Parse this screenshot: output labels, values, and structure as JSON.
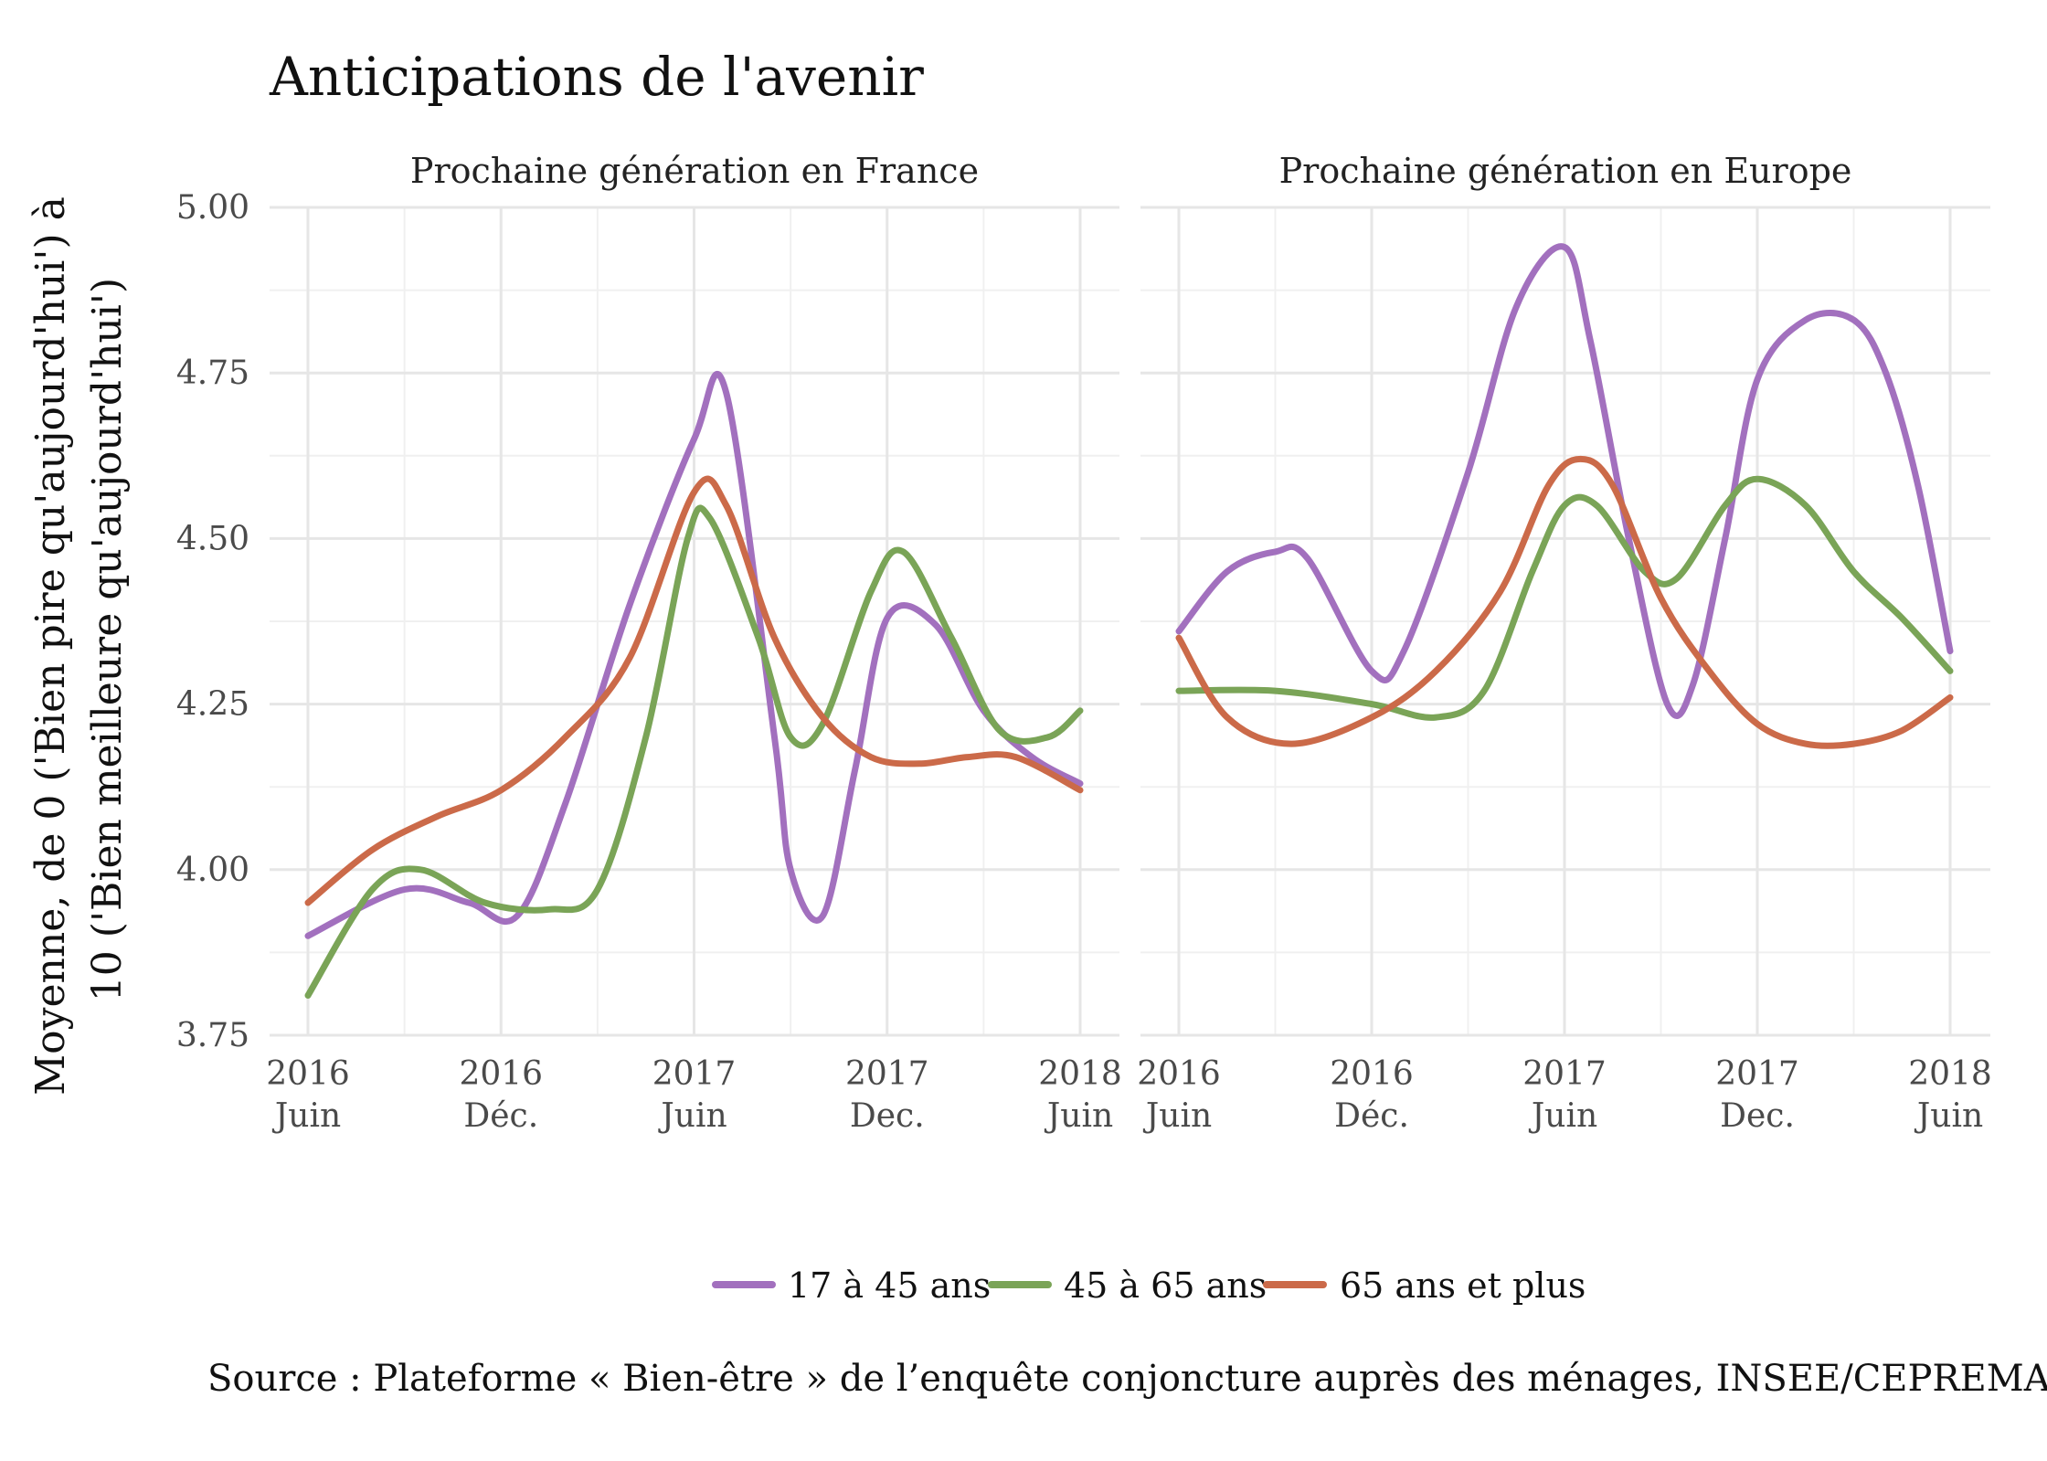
{
  "chart_data": {
    "type": "line",
    "title": "Anticipations de l'avenir",
    "ylabel_lines": [
      "Moyenne, de 0 ('Bien pire qu'aujourd'hui') à",
      "10 ('Bien meilleure qu'aujourd'hui')"
    ],
    "caption": "Source : Plateforme « Bien-être » de l’enquête conjoncture auprès des ménages, INSEE/CEPREMAP",
    "ylim": [
      3.75,
      5.0
    ],
    "y_ticks": [
      "3.75",
      "4.00",
      "4.25",
      "4.50",
      "4.75",
      "5.00"
    ],
    "x_ticks": [
      {
        "year": "2016",
        "label": "Juin"
      },
      {
        "year": "2016",
        "label": "Déc."
      },
      {
        "year": "2017",
        "label": "Juin"
      },
      {
        "year": "2017",
        "label": "Dec."
      },
      {
        "year": "2018",
        "label": "Juin"
      }
    ],
    "x_unit": "months since June 2016",
    "colors": {
      "17 à 45 ans": "#a270be",
      "45 à 65 ans": "#7aa457",
      "65 ans et plus": "#cb6a49"
    },
    "legend": [
      "17 à 45 ans",
      "45 à 65 ans",
      "65 ans et plus"
    ],
    "grid": true,
    "panels": [
      {
        "name": "Prochaine génération en France",
        "series": [
          {
            "name": "17 à 45 ans",
            "x": [
              0,
              3,
              5,
              6.5,
              8,
              10,
              12,
              13,
              14.5,
              15,
              16,
              17,
              18,
              19.5,
              21,
              22.5,
              24
            ],
            "values": [
              3.9,
              3.97,
              3.95,
              3.93,
              4.1,
              4.4,
              4.65,
              4.72,
              4.2,
              4.0,
              3.93,
              4.15,
              4.38,
              4.37,
              4.24,
              4.17,
              4.13
            ]
          },
          {
            "name": "45 à 65 ans",
            "x": [
              0,
              2,
              3.5,
              5.5,
              7.5,
              9,
              10.5,
              11.8,
              12.5,
              14,
              15,
              16,
              17.5,
              18.5,
              20,
              21.5,
              23,
              24
            ],
            "values": [
              3.81,
              3.97,
              4.0,
              3.95,
              3.94,
              3.97,
              4.2,
              4.5,
              4.53,
              4.35,
              4.2,
              4.22,
              4.42,
              4.48,
              4.35,
              4.21,
              4.2,
              4.24
            ]
          },
          {
            "name": "65 ans et plus",
            "x": [
              0,
              2,
              4,
              6,
              8,
              10,
              12,
              13,
              14.5,
              16,
              17.5,
              19,
              20.5,
              22,
              24
            ],
            "values": [
              3.95,
              4.03,
              4.08,
              4.12,
              4.2,
              4.32,
              4.57,
              4.55,
              4.35,
              4.23,
              4.17,
              4.16,
              4.17,
              4.17,
              4.12
            ]
          }
        ]
      },
      {
        "name": "Prochaine génération en Europe",
        "series": [
          {
            "name": "17 à 45 ans",
            "x": [
              0,
              1.5,
              3,
              4,
              6,
              7,
              9,
              10.5,
              12,
              12.8,
              14,
              15.2,
              16,
              17,
              18,
              19.5,
              21,
              22,
              23,
              24
            ],
            "values": [
              4.36,
              4.45,
              4.48,
              4.47,
              4.3,
              4.33,
              4.6,
              4.85,
              4.94,
              4.8,
              4.5,
              4.25,
              4.28,
              4.5,
              4.74,
              4.83,
              4.83,
              4.75,
              4.58,
              4.33
            ]
          },
          {
            "name": "45 à 65 ans",
            "x": [
              0,
              3,
              6,
              8,
              9.5,
              11,
              12,
              13,
              14.5,
              15.5,
              17,
              18,
              19.5,
              21,
              22.5,
              24
            ],
            "values": [
              4.27,
              4.27,
              4.25,
              4.23,
              4.27,
              4.45,
              4.55,
              4.55,
              4.45,
              4.44,
              4.55,
              4.59,
              4.55,
              4.45,
              4.38,
              4.3
            ]
          },
          {
            "name": "65 ans et plus",
            "x": [
              0,
              1.5,
              3.5,
              6,
              8,
              10,
              11.5,
              12.5,
              13.5,
              15,
              16.5,
              18,
              19.5,
              21,
              22.5,
              24
            ],
            "values": [
              4.35,
              4.23,
              4.19,
              4.23,
              4.3,
              4.42,
              4.58,
              4.62,
              4.58,
              4.41,
              4.3,
              4.22,
              4.19,
              4.19,
              4.21,
              4.26
            ]
          }
        ]
      }
    ]
  }
}
